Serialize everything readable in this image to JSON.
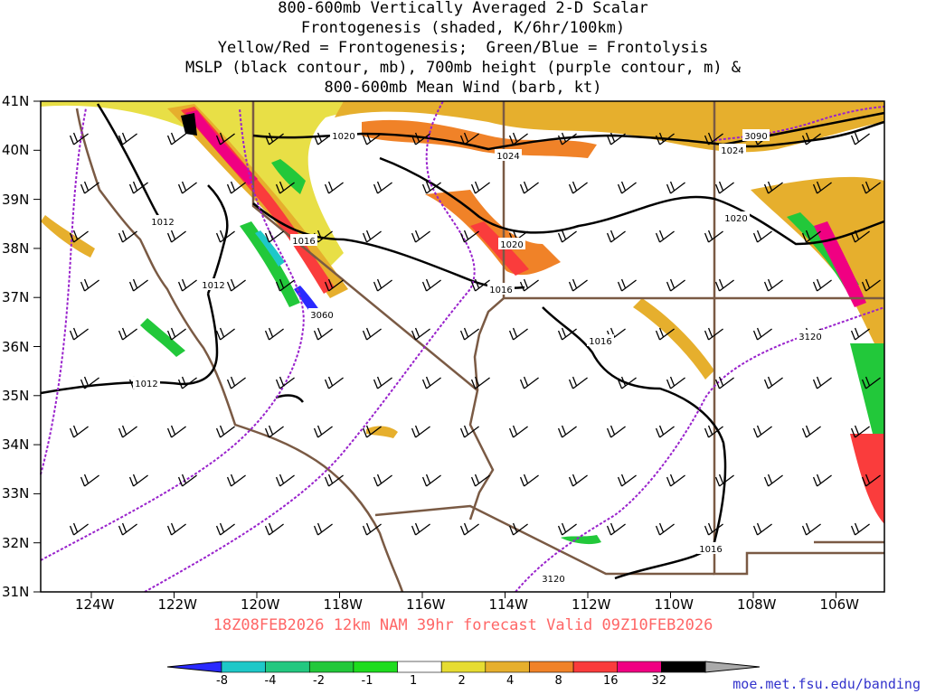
{
  "title": {
    "line1": "800-600mb Vertically Averaged 2-D Scalar",
    "line2": "Frontogenesis (shaded, K/6hr/100km)",
    "line3": "Yellow/Red = Frontogenesis;  Green/Blue = Frontolysis",
    "line4": "MSLP (black contour, mb), 700mb height (purple contour, m) &",
    "line5": "800-600mb Mean Wind (barb, kt)"
  },
  "footer": "18Z08FEB2026 12km NAM 39hr forecast Valid 09Z10FEB2026",
  "credit": "moe.met.fsu.edu/banding",
  "axes": {
    "lat_labels": [
      "41N",
      "40N",
      "39N",
      "38N",
      "37N",
      "36N",
      "35N",
      "34N",
      "33N",
      "32N",
      "31N"
    ],
    "lon_labels": [
      "124W",
      "122W",
      "120W",
      "118W",
      "116W",
      "114W",
      "112W",
      "110W",
      "108W",
      "106W"
    ]
  },
  "contour_labels": {
    "mslp": [
      "1020",
      "1024",
      "1024",
      "1012",
      "1016",
      "1020",
      "1020",
      "1012",
      "1016",
      "1016",
      "1012",
      "1016"
    ],
    "height": [
      "3090",
      "3060",
      "3120",
      "3120"
    ]
  },
  "colorbar": {
    "ticks": [
      "-8",
      "-4",
      "-2",
      "-1",
      "1",
      "2",
      "4",
      "8",
      "16",
      "32"
    ],
    "colors": [
      "#2a2aff",
      "#1ec8c8",
      "#23c880",
      "#22c83a",
      "#1edc1e",
      "#ffffff",
      "#e6dc32",
      "#e6af2d",
      "#f08228",
      "#fa3c3c",
      "#f00082",
      "#000000",
      "#aaaaaa"
    ]
  }
}
